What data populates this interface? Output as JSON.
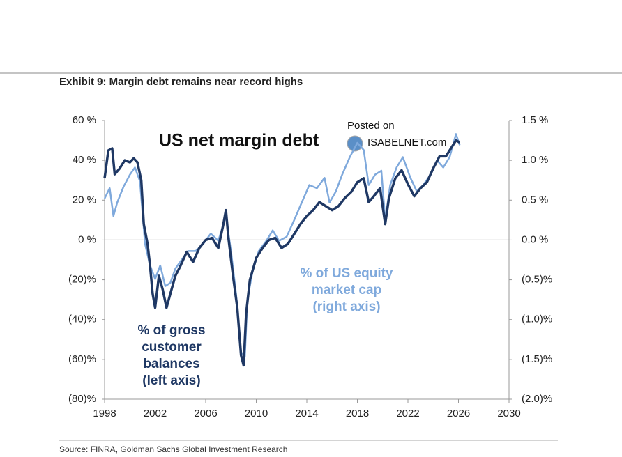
{
  "chart_data": {
    "type": "line",
    "title": "Exhibit 9: Margin debt remains near record highs",
    "subtitle": "US net margin debt",
    "source": "Source: FINRA, Goldman Sachs Global Investment Research",
    "watermark": [
      "Posted on",
      "ISABELNET.com"
    ],
    "xlim": [
      1998,
      2030
    ],
    "xticks": [
      1998,
      2002,
      2006,
      2010,
      2014,
      2018,
      2022,
      2026,
      2030
    ],
    "ylim": [
      -80,
      60
    ],
    "yticks": [
      {
        "value": -80,
        "label": "(80)%"
      },
      {
        "value": -60,
        "label": "(60)%"
      },
      {
        "value": -40,
        "label": "(40)%"
      },
      {
        "value": -20,
        "label": "(20)%"
      },
      {
        "value": 0,
        "label": "0 %"
      },
      {
        "value": 20,
        "label": "20 %"
      },
      {
        "value": 40,
        "label": "40 %"
      },
      {
        "value": 60,
        "label": "60 %"
      }
    ],
    "y2lim": [
      -2.0,
      1.5
    ],
    "y2ticks": [
      {
        "value": -2.0,
        "label": "(2.0)%"
      },
      {
        "value": -1.5,
        "label": "(1.5)%"
      },
      {
        "value": -1.0,
        "label": "(1.0)%"
      },
      {
        "value": -0.5,
        "label": "(0.5)%"
      },
      {
        "value": 0.0,
        "label": "0.0 %"
      },
      {
        "value": 0.5,
        "label": "0.5 %"
      },
      {
        "value": 1.0,
        "label": "1.0 %"
      },
      {
        "value": 1.5,
        "label": "1.5 %"
      }
    ],
    "series": [
      {
        "name": [
          "% of gross",
          "customer",
          "balances",
          "(left axis)"
        ],
        "color": "#1f3864",
        "axis": "y",
        "x": [
          1998.0,
          1998.3,
          1998.6,
          1998.8,
          1999.2,
          1999.6,
          2000.0,
          2000.3,
          2000.6,
          2000.9,
          2001.1,
          2001.4,
          2001.6,
          2001.8,
          2002.0,
          2002.3,
          2002.6,
          2002.9,
          2003.2,
          2003.6,
          2004.0,
          2004.5,
          2005.0,
          2005.5,
          2006.0,
          2006.5,
          2007.0,
          2007.4,
          2007.6,
          2007.8,
          2008.2,
          2008.5,
          2008.8,
          2009.0,
          2009.2,
          2009.5,
          2010.0,
          2010.5,
          2011.0,
          2011.5,
          2012.0,
          2012.5,
          2013.0,
          2013.5,
          2014.0,
          2014.5,
          2015.0,
          2015.5,
          2016.0,
          2016.5,
          2017.0,
          2017.5,
          2018.0,
          2018.5,
          2018.9,
          2019.3,
          2019.8,
          2020.2,
          2020.5,
          2021.0,
          2021.5,
          2022.0,
          2022.5,
          2023.0,
          2023.5,
          2024.0,
          2024.5,
          2025.0,
          2025.3,
          2025.8,
          2026.1
        ],
        "values": [
          31,
          45,
          46,
          33,
          36,
          40,
          39,
          41,
          39,
          30,
          8,
          -2,
          -13,
          -27,
          -34,
          -18,
          -25,
          -34,
          -27,
          -18,
          -13,
          -6,
          -11,
          -4,
          0,
          1,
          -4,
          8,
          15,
          1,
          -20,
          -34,
          -58,
          -63,
          -37,
          -20,
          -9,
          -4,
          0,
          1,
          -4,
          -2,
          3,
          8,
          12,
          15,
          19,
          17,
          15,
          17,
          21,
          24,
          29,
          31,
          19,
          22,
          26,
          8,
          21,
          31,
          35,
          28,
          22,
          26,
          29,
          36,
          42,
          42,
          45,
          50,
          49
        ]
      },
      {
        "name": [
          "% of US equity",
          "market cap",
          "(right axis)"
        ],
        "color": "#7fa9dc",
        "axis": "y2",
        "x": [
          1998.0,
          1998.4,
          1998.7,
          1999.0,
          1999.5,
          2000.0,
          2000.4,
          2000.8,
          2001.2,
          2001.6,
          2002.0,
          2002.4,
          2002.8,
          2003.2,
          2003.6,
          2004.0,
          2004.6,
          2005.2,
          2005.8,
          2006.4,
          2007.0,
          2007.6,
          2008.0,
          2008.4,
          2008.8,
          2009.1,
          2009.3,
          2009.7,
          2010.2,
          2010.8,
          2011.3,
          2011.8,
          2012.4,
          2013.0,
          2013.6,
          2014.2,
          2014.8,
          2015.4,
          2015.8,
          2016.3,
          2016.8,
          2017.4,
          2018.0,
          2018.5,
          2018.9,
          2019.4,
          2019.9,
          2020.2,
          2020.6,
          2021.1,
          2021.6,
          2022.2,
          2022.7,
          2023.2,
          2023.8,
          2024.3,
          2024.8,
          2025.3,
          2025.8,
          2026.1
        ],
        "values": [
          0.52,
          0.65,
          0.3,
          0.47,
          0.67,
          0.82,
          0.91,
          0.74,
          -0.05,
          -0.32,
          -0.49,
          -0.32,
          -0.58,
          -0.54,
          -0.36,
          -0.27,
          -0.14,
          -0.14,
          -0.05,
          0.08,
          -0.01,
          0.3,
          -0.14,
          -0.67,
          -1.41,
          -1.46,
          -0.75,
          -0.4,
          -0.14,
          -0.01,
          0.12,
          -0.01,
          0.04,
          0.25,
          0.47,
          0.69,
          0.65,
          0.78,
          0.47,
          0.61,
          0.82,
          1.04,
          1.22,
          1.13,
          0.69,
          0.82,
          0.87,
          0.25,
          0.69,
          0.91,
          1.04,
          0.78,
          0.61,
          0.69,
          0.82,
          1.0,
          0.91,
          1.04,
          1.33,
          1.19
        ]
      }
    ]
  }
}
